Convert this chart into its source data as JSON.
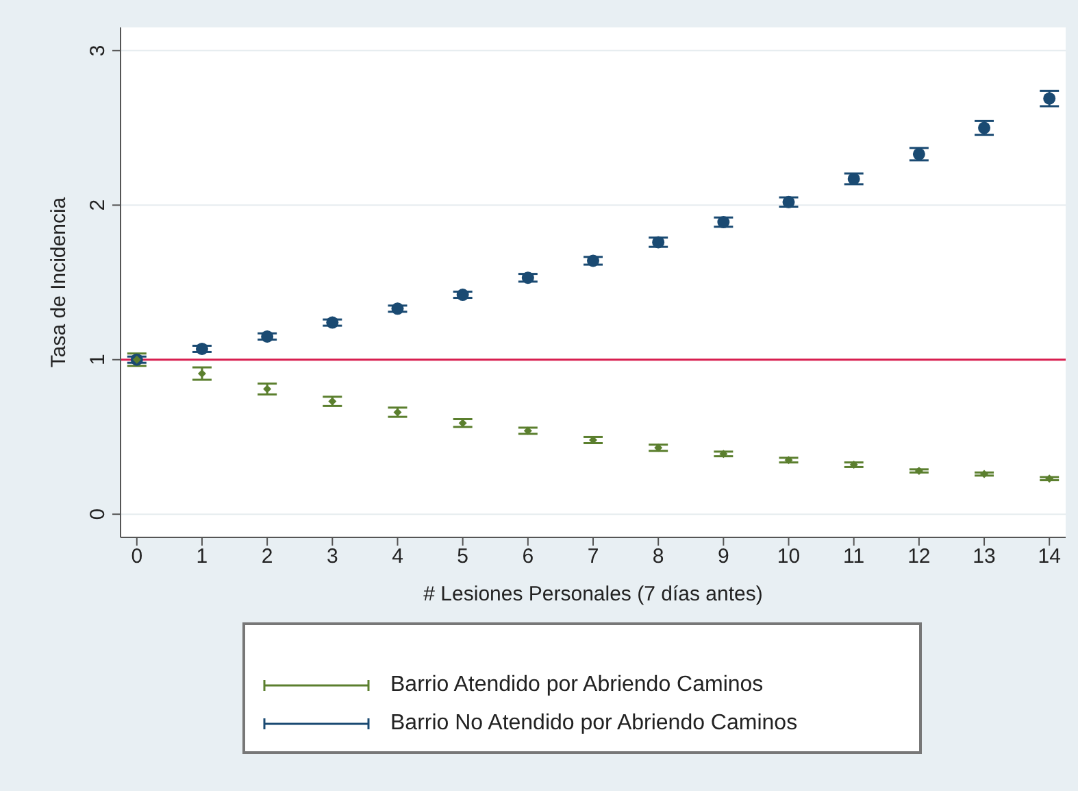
{
  "chart_data": {
    "type": "scatter",
    "xlabel": "# Lesiones Personales (7 días antes)",
    "ylabel": "Tasa de Incidencia",
    "x": [
      0,
      1,
      2,
      3,
      4,
      5,
      6,
      7,
      8,
      9,
      10,
      11,
      12,
      13,
      14
    ],
    "xlim": [
      -0.25,
      14.25
    ],
    "xticks": [
      0,
      1,
      2,
      3,
      4,
      5,
      6,
      7,
      8,
      9,
      10,
      11,
      12,
      13,
      14
    ],
    "ylim": [
      -0.15,
      3.15
    ],
    "yticks": [
      0,
      1,
      2,
      3
    ],
    "grid": "y",
    "legend": "bottom",
    "ref_lines": [
      {
        "axis": "y",
        "value": 1,
        "color": "#d81e4f"
      }
    ],
    "series": [
      {
        "name": "Barrio Atendido por Abriendo Caminos",
        "color": "#5b7f2e",
        "marker": "diamond",
        "values": [
          1.0,
          0.91,
          0.81,
          0.73,
          0.66,
          0.59,
          0.54,
          0.48,
          0.43,
          0.39,
          0.35,
          0.32,
          0.28,
          0.26,
          0.23
        ],
        "errors": [
          0.04,
          0.04,
          0.035,
          0.03,
          0.03,
          0.025,
          0.02,
          0.02,
          0.02,
          0.015,
          0.015,
          0.015,
          0.01,
          0.01,
          0.01
        ]
      },
      {
        "name": "Barrio No Atendido por Abriendo Caminos",
        "color": "#1a4a72",
        "marker": "circle",
        "values": [
          1.0,
          1.07,
          1.15,
          1.24,
          1.33,
          1.42,
          1.53,
          1.64,
          1.76,
          1.89,
          2.02,
          2.17,
          2.33,
          2.5,
          2.69
        ],
        "errors": [
          0.02,
          0.02,
          0.02,
          0.02,
          0.02,
          0.02,
          0.025,
          0.025,
          0.03,
          0.03,
          0.03,
          0.035,
          0.04,
          0.045,
          0.05
        ]
      }
    ]
  }
}
